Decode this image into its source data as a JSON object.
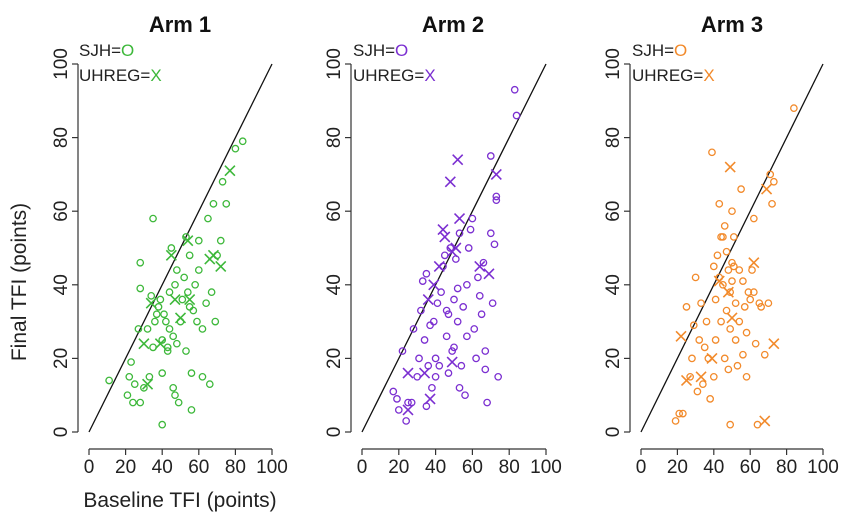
{
  "axes": {
    "xlabel": "Baseline TFI (points)",
    "ylabel": "Final TFI (points)",
    "ticks": [
      "0",
      "20",
      "40",
      "60",
      "80",
      "100"
    ]
  },
  "chart_data": [
    {
      "type": "scatter",
      "title": "Arm 1",
      "color": "#3db83a",
      "xlim": [
        0,
        100
      ],
      "ylim": [
        0,
        100
      ],
      "grid": false,
      "reference_line": "y = x",
      "legend": {
        "placement": "top-left",
        "entries": [
          {
            "label": "SJH=",
            "marker": "O"
          },
          {
            "label": "UHREG=",
            "marker": "X"
          }
        ]
      },
      "series": [
        {
          "name": "SJH",
          "marker": "circle",
          "points": [
            [
              11,
              14
            ],
            [
              21,
              10
            ],
            [
              22,
              15
            ],
            [
              23,
              19
            ],
            [
              24,
              8
            ],
            [
              25,
              13
            ],
            [
              27,
              28
            ],
            [
              28,
              39
            ],
            [
              28,
              8
            ],
            [
              28,
              46
            ],
            [
              30,
              12
            ],
            [
              32,
              28
            ],
            [
              33,
              15
            ],
            [
              34,
              37
            ],
            [
              35,
              58
            ],
            [
              35,
              23
            ],
            [
              36,
              30
            ],
            [
              37,
              32
            ],
            [
              38,
              34
            ],
            [
              39,
              36
            ],
            [
              40,
              16
            ],
            [
              40,
              25
            ],
            [
              41,
              32
            ],
            [
              42,
              30
            ],
            [
              43,
              22
            ],
            [
              44,
              28
            ],
            [
              44,
              38
            ],
            [
              45,
              50
            ],
            [
              46,
              26
            ],
            [
              46,
              12
            ],
            [
              47,
              40
            ],
            [
              47,
              10
            ],
            [
              48,
              44
            ],
            [
              48,
              24
            ],
            [
              49,
              8
            ],
            [
              50,
              30
            ],
            [
              51,
              36
            ],
            [
              52,
              42
            ],
            [
              53,
              53
            ],
            [
              53,
              22
            ],
            [
              54,
              38
            ],
            [
              55,
              34
            ],
            [
              56,
              16
            ],
            [
              56,
              6
            ],
            [
              57,
              33
            ],
            [
              58,
              40
            ],
            [
              59,
              30
            ],
            [
              60,
              52
            ],
            [
              62,
              15
            ],
            [
              62,
              28
            ],
            [
              64,
              35
            ],
            [
              65,
              58
            ],
            [
              66,
              13
            ],
            [
              67,
              38
            ],
            [
              68,
              62
            ],
            [
              69,
              30
            ],
            [
              70,
              48
            ],
            [
              72,
              52
            ],
            [
              73,
              68
            ],
            [
              75,
              62
            ],
            [
              80,
              77
            ],
            [
              84,
              79
            ],
            [
              40,
              2
            ],
            [
              43,
              23
            ],
            [
              55,
              48
            ],
            [
              60,
              44
            ]
          ]
        },
        {
          "name": "UHREG",
          "marker": "x",
          "points": [
            [
              30,
              24
            ],
            [
              32,
              13
            ],
            [
              34,
              35
            ],
            [
              39,
              24
            ],
            [
              45,
              48
            ],
            [
              47,
              36
            ],
            [
              50,
              31
            ],
            [
              54,
              52
            ],
            [
              55,
              36
            ],
            [
              66,
              47
            ],
            [
              68,
              48
            ],
            [
              72,
              45
            ],
            [
              77,
              71
            ]
          ]
        }
      ]
    },
    {
      "type": "scatter",
      "title": "Arm 2",
      "color": "#7b2fd1",
      "xlim": [
        0,
        100
      ],
      "ylim": [
        0,
        100
      ],
      "grid": false,
      "reference_line": "y = x",
      "legend": {
        "placement": "top-left",
        "entries": [
          {
            "label": "SJH=",
            "marker": "O"
          },
          {
            "label": "UHREG=",
            "marker": "X"
          }
        ]
      },
      "series": [
        {
          "name": "SJH",
          "marker": "circle",
          "points": [
            [
              17,
              11
            ],
            [
              19,
              9
            ],
            [
              20,
              6
            ],
            [
              22,
              22
            ],
            [
              24,
              3
            ],
            [
              25,
              8
            ],
            [
              27,
              8
            ],
            [
              28,
              28
            ],
            [
              30,
              15
            ],
            [
              31,
              20
            ],
            [
              32,
              33
            ],
            [
              33,
              41
            ],
            [
              34,
              25
            ],
            [
              35,
              7
            ],
            [
              35,
              43
            ],
            [
              36,
              18
            ],
            [
              37,
              29
            ],
            [
              38,
              12
            ],
            [
              39,
              30
            ],
            [
              40,
              15
            ],
            [
              41,
              35
            ],
            [
              42,
              18
            ],
            [
              43,
              38
            ],
            [
              44,
              45
            ],
            [
              45,
              48
            ],
            [
              46,
              26
            ],
            [
              47,
              16
            ],
            [
              47,
              32
            ],
            [
              48,
              50
            ],
            [
              49,
              22
            ],
            [
              50,
              36
            ],
            [
              50,
              23
            ],
            [
              51,
              47
            ],
            [
              52,
              30
            ],
            [
              53,
              54
            ],
            [
              53,
              12
            ],
            [
              54,
              18
            ],
            [
              55,
              34
            ],
            [
              56,
              10
            ],
            [
              57,
              40
            ],
            [
              57,
              26
            ],
            [
              58,
              50
            ],
            [
              59,
              55
            ],
            [
              60,
              58
            ],
            [
              61,
              28
            ],
            [
              62,
              20
            ],
            [
              63,
              42
            ],
            [
              64,
              37
            ],
            [
              65,
              32
            ],
            [
              66,
              46
            ],
            [
              67,
              22
            ],
            [
              67,
              17
            ],
            [
              68,
              8
            ],
            [
              70,
              54
            ],
            [
              70,
              75
            ],
            [
              71,
              35
            ],
            [
              72,
              51
            ],
            [
              73,
              64
            ],
            [
              73,
              63
            ],
            [
              74,
              15
            ],
            [
              83,
              93
            ],
            [
              84,
              86
            ],
            [
              40,
              20
            ],
            [
              46,
              33
            ],
            [
              52,
              39
            ]
          ]
        },
        {
          "name": "UHREG",
          "marker": "x",
          "points": [
            [
              25,
              16
            ],
            [
              25,
              6
            ],
            [
              34,
              16
            ],
            [
              36,
              36
            ],
            [
              37,
              9
            ],
            [
              39,
              40
            ],
            [
              42,
              45
            ],
            [
              44,
              55
            ],
            [
              45,
              53
            ],
            [
              48,
              68
            ],
            [
              49,
              49
            ],
            [
              49,
              19
            ],
            [
              51,
              50
            ],
            [
              52,
              74
            ],
            [
              53,
              58
            ],
            [
              64,
              45
            ],
            [
              69,
              43
            ],
            [
              73,
              70
            ]
          ]
        }
      ]
    },
    {
      "type": "scatter",
      "title": "Arm 3",
      "color": "#f28a2b",
      "xlim": [
        0,
        100
      ],
      "ylim": [
        0,
        100
      ],
      "grid": false,
      "reference_line": "y = x",
      "legend": {
        "placement": "top-left",
        "entries": [
          {
            "label": "SJH=",
            "marker": "O"
          },
          {
            "label": "UHREG=",
            "marker": "X"
          }
        ]
      },
      "series": [
        {
          "name": "SJH",
          "marker": "circle",
          "points": [
            [
              19,
              3
            ],
            [
              21,
              5
            ],
            [
              23,
              5
            ],
            [
              25,
              34
            ],
            [
              27,
              15
            ],
            [
              28,
              20
            ],
            [
              29,
              29
            ],
            [
              30,
              42
            ],
            [
              31,
              11
            ],
            [
              32,
              25
            ],
            [
              33,
              35
            ],
            [
              34,
              13
            ],
            [
              35,
              23
            ],
            [
              36,
              30
            ],
            [
              37,
              20
            ],
            [
              38,
              9
            ],
            [
              39,
              76
            ],
            [
              40,
              45
            ],
            [
              40,
              15
            ],
            [
              41,
              25
            ],
            [
              41,
              36
            ],
            [
              42,
              48
            ],
            [
              43,
              42
            ],
            [
              43,
              62
            ],
            [
              44,
              30
            ],
            [
              44,
              53
            ],
            [
              45,
              40
            ],
            [
              46,
              56
            ],
            [
              46,
              20
            ],
            [
              47,
              33
            ],
            [
              47,
              49
            ],
            [
              48,
              44
            ],
            [
              48,
              17
            ],
            [
              49,
              38
            ],
            [
              49,
              28
            ],
            [
              49,
              2
            ],
            [
              50,
              46
            ],
            [
              50,
              60
            ],
            [
              51,
              45
            ],
            [
              51,
              53
            ],
            [
              52,
              25
            ],
            [
              52,
              35
            ],
            [
              53,
              18
            ],
            [
              54,
              30
            ],
            [
              54,
              44
            ],
            [
              55,
              66
            ],
            [
              56,
              21
            ],
            [
              56,
              41
            ],
            [
              57,
              34
            ],
            [
              58,
              15
            ],
            [
              58,
              27
            ],
            [
              59,
              38
            ],
            [
              60,
              36
            ],
            [
              61,
              44
            ],
            [
              62,
              38
            ],
            [
              62,
              58
            ],
            [
              63,
              24
            ],
            [
              64,
              2
            ],
            [
              65,
              35
            ],
            [
              66,
              34
            ],
            [
              68,
              21
            ],
            [
              70,
              35
            ],
            [
              71,
              70
            ],
            [
              72,
              62
            ],
            [
              73,
              68
            ],
            [
              84,
              88
            ],
            [
              45,
              53
            ],
            [
              50,
              41
            ]
          ]
        },
        {
          "name": "UHREG",
          "marker": "x",
          "points": [
            [
              22,
              26
            ],
            [
              25,
              14
            ],
            [
              33,
              15
            ],
            [
              39,
              20
            ],
            [
              43,
              41
            ],
            [
              48,
              38
            ],
            [
              49,
              72
            ],
            [
              50,
              31
            ],
            [
              62,
              46
            ],
            [
              68,
              3
            ],
            [
              69,
              66
            ],
            [
              73,
              24
            ]
          ]
        }
      ]
    }
  ]
}
